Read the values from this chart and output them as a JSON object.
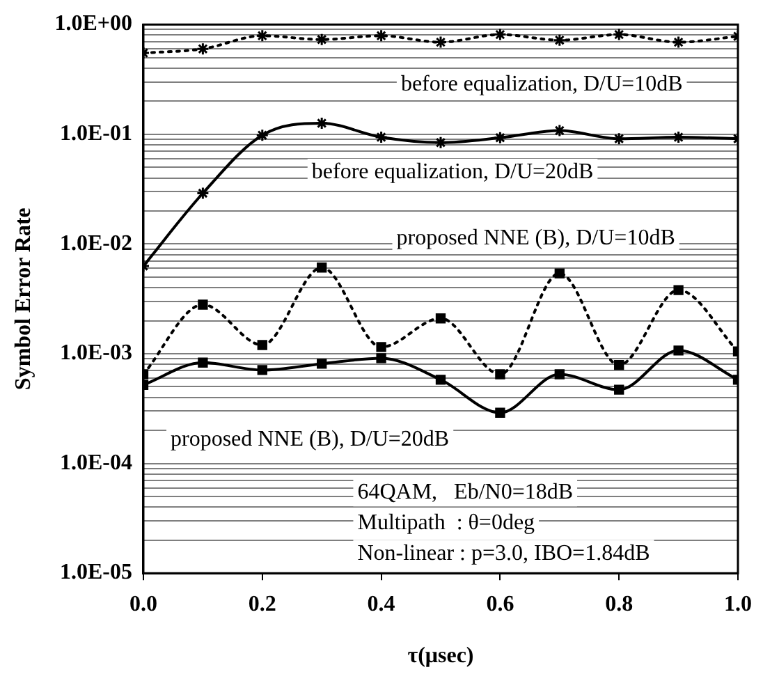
{
  "chart_data": {
    "type": "line",
    "xlabel": "τ(μsec)",
    "ylabel": "Symbol Error Rate",
    "log": "y",
    "grid": "y",
    "legend": false,
    "x": [
      0,
      0.1,
      0.2,
      0.3,
      0.4,
      0.5,
      0.6,
      0.7,
      0.8,
      0.9,
      1.0
    ],
    "xlim": [
      0,
      1
    ],
    "xticks": [
      {
        "value": 0,
        "label": "0.0"
      },
      {
        "value": 0.2,
        "label": "0.2"
      },
      {
        "value": 0.4,
        "label": "0.4"
      },
      {
        "value": 0.6,
        "label": "0.6"
      },
      {
        "value": 0.8,
        "label": "0.8"
      },
      {
        "value": 1,
        "label": "1.0"
      }
    ],
    "ylim": [
      1e-05,
      1
    ],
    "yticks": [
      {
        "value": 1e-05,
        "label": "1.0E-05"
      },
      {
        "value": 2e-05,
        "label": null
      },
      {
        "value": 3e-05,
        "label": null
      },
      {
        "value": 4e-05,
        "label": null
      },
      {
        "value": 5e-05,
        "label": null
      },
      {
        "value": 6e-05,
        "label": null
      },
      {
        "value": 7e-05,
        "label": null
      },
      {
        "value": 8e-05,
        "label": null
      },
      {
        "value": 9e-05,
        "label": null
      },
      {
        "value": 0.0001,
        "label": "1.0E-04"
      },
      {
        "value": 0.0002,
        "label": null
      },
      {
        "value": 0.0003,
        "label": null
      },
      {
        "value": 0.0004,
        "label": null
      },
      {
        "value": 0.0005,
        "label": null
      },
      {
        "value": 0.0006,
        "label": null
      },
      {
        "value": 0.0007,
        "label": null
      },
      {
        "value": 0.0008,
        "label": null
      },
      {
        "value": 0.0009,
        "label": null
      },
      {
        "value": 0.001,
        "label": "1.0E-03"
      },
      {
        "value": 0.002,
        "label": null
      },
      {
        "value": 0.003,
        "label": null
      },
      {
        "value": 0.004,
        "label": null
      },
      {
        "value": 0.005,
        "label": null
      },
      {
        "value": 0.006,
        "label": null
      },
      {
        "value": 0.007,
        "label": null
      },
      {
        "value": 0.008,
        "label": null
      },
      {
        "value": 0.009,
        "label": null
      },
      {
        "value": 0.01,
        "label": "1.0E-02"
      },
      {
        "value": 0.02,
        "label": null
      },
      {
        "value": 0.03,
        "label": null
      },
      {
        "value": 0.04,
        "label": null
      },
      {
        "value": 0.05,
        "label": null
      },
      {
        "value": 0.06,
        "label": null
      },
      {
        "value": 0.07,
        "label": null
      },
      {
        "value": 0.08,
        "label": null
      },
      {
        "value": 0.09,
        "label": null
      },
      {
        "value": 0.1,
        "label": "1.0E-01"
      },
      {
        "value": 0.2,
        "label": null
      },
      {
        "value": 0.3,
        "label": null
      },
      {
        "value": 0.4,
        "label": null
      },
      {
        "value": 0.5,
        "label": null
      },
      {
        "value": 0.6,
        "label": null
      },
      {
        "value": 0.7,
        "label": null
      },
      {
        "value": 0.8,
        "label": null
      },
      {
        "value": 0.9,
        "label": null
      },
      {
        "value": 1,
        "label": "1.0E+00"
      }
    ],
    "series": [
      {
        "name": "before equalization, D/U=10dB",
        "color": "#000000",
        "marker": "cross",
        "line_style": "dotted",
        "values": [
          0.55,
          0.6,
          0.79,
          0.73,
          0.79,
          0.69,
          0.81,
          0.72,
          0.81,
          0.69,
          0.78
        ]
      },
      {
        "name": "before equalization, D/U=20dB",
        "color": "#000000",
        "marker": "cross",
        "line_style": "solid",
        "values": [
          0.0063,
          0.029,
          0.098,
          0.126,
          0.094,
          0.084,
          0.093,
          0.108,
          0.091,
          0.094,
          0.091
        ]
      },
      {
        "name": "proposed NNE (B), D/U=10dB",
        "color": "#000000",
        "marker": "square",
        "line_style": "dotted",
        "values": [
          0.00065,
          0.0028,
          0.0012,
          0.0061,
          0.00115,
          0.0021,
          0.00065,
          0.0054,
          0.00079,
          0.0038,
          0.00105
        ]
      },
      {
        "name": "proposed NNE (B), D/U=20dB",
        "color": "#000000",
        "marker": "square",
        "line_style": "solid",
        "values": [
          0.00052,
          0.00083,
          0.00071,
          0.00081,
          0.00091,
          0.00058,
          0.00029,
          0.00065,
          0.00047,
          0.00107,
          0.00058
        ]
      }
    ],
    "annotations": [
      "64QAM,   Eb/N0=18dB",
      "Multipath  : θ=0deg",
      "Non-linear : p=3.0, IBO=1.84dB"
    ]
  }
}
